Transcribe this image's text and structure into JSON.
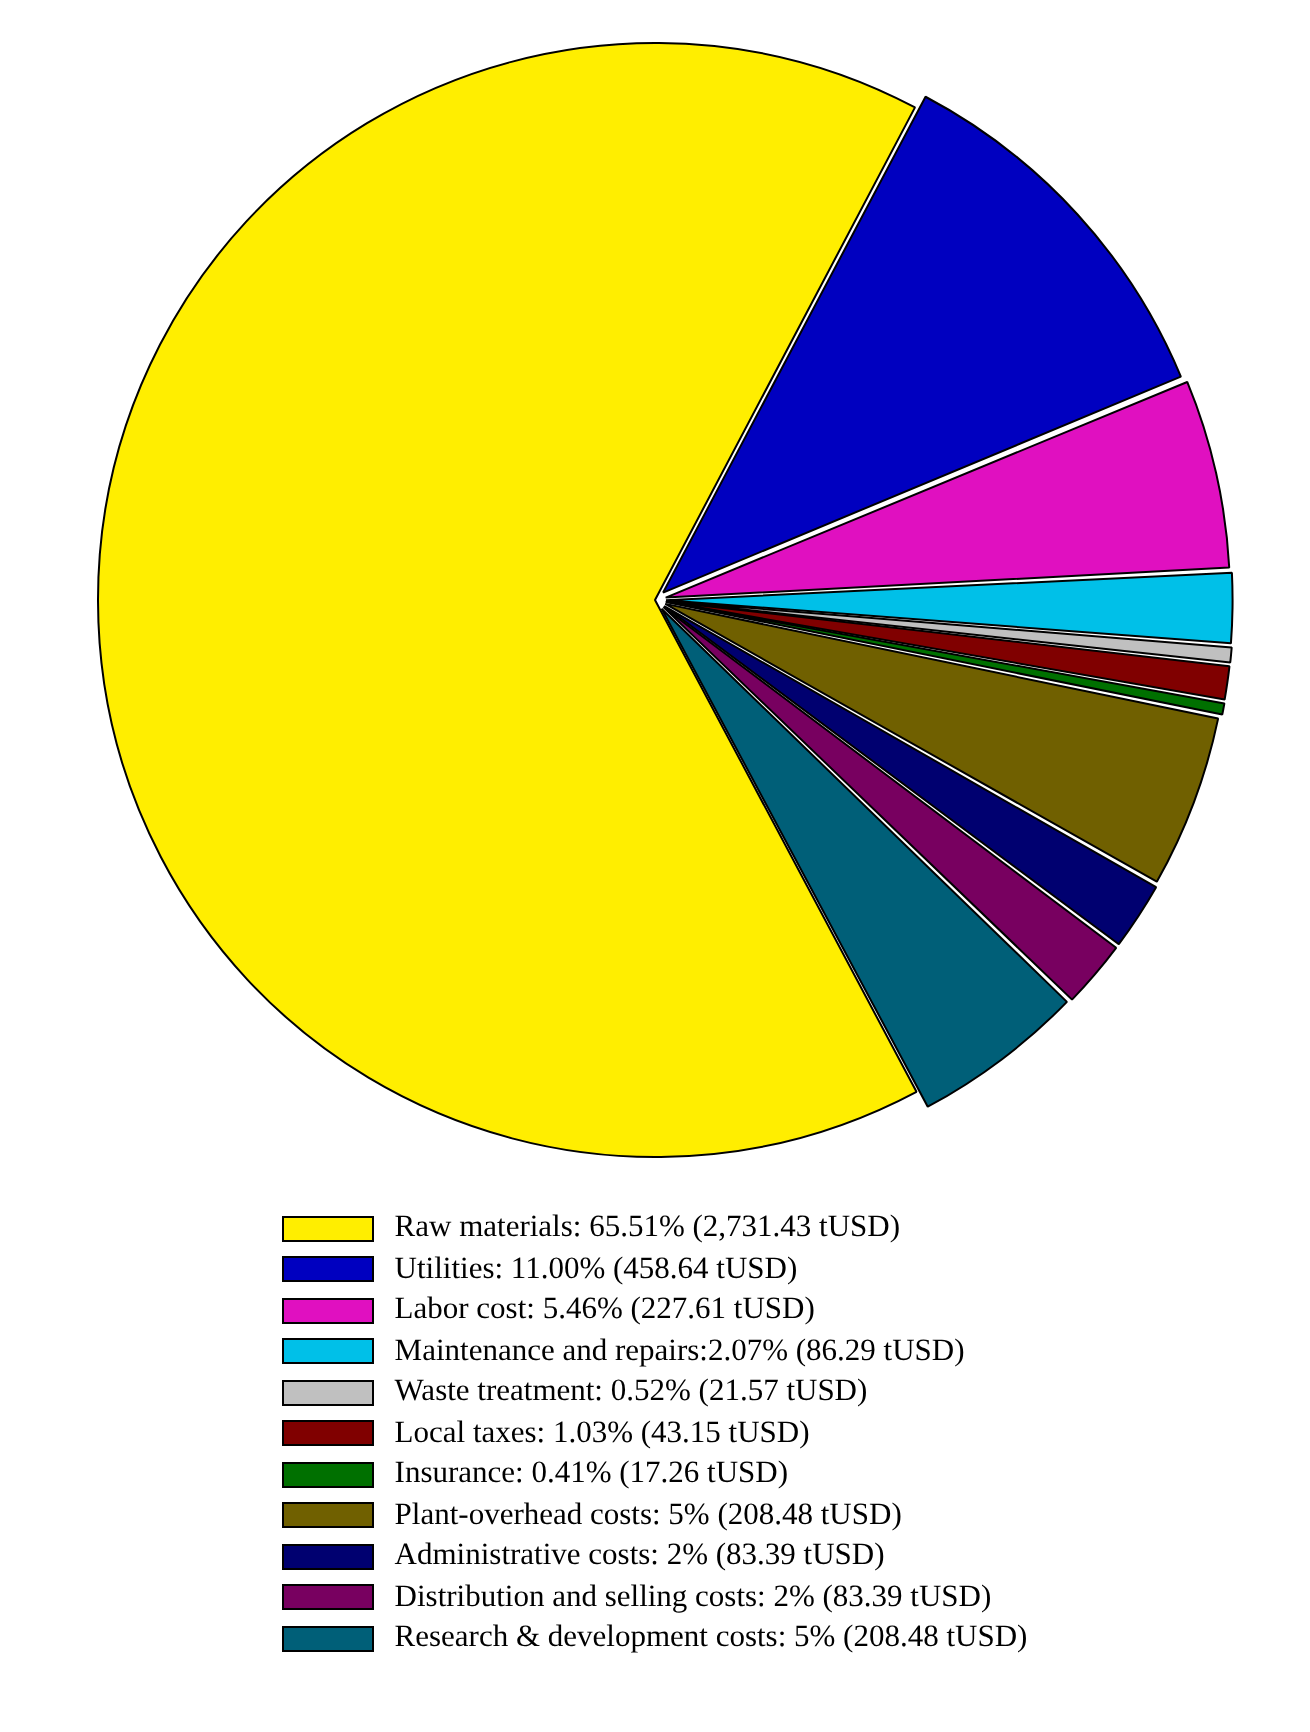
{
  "chart_data": {
    "type": "pie",
    "categories": [
      "Raw materials: 65.51% (2,731.43 tUSD)",
      "Utilities: 11.00% (458.64 tUSD)",
      "Labor cost: 5.46% (227.61 tUSD)",
      "Maintenance and repairs:2.07% (86.29 tUSD)",
      "Waste treatment: 0.52% (21.57 tUSD)",
      "Local taxes: 1.03% (43.15 tUSD)",
      "Insurance: 0.41% (17.26 tUSD)",
      "Plant-overhead costs: 5% (208.48 tUSD)",
      "Administrative costs: 2% (83.39 tUSD)",
      "Distribution and selling costs: 2% (83.39 tUSD)",
      "Research & development costs: 5% (208.48 tUSD)"
    ],
    "values": [
      2731.43,
      458.64,
      227.61,
      86.29,
      21.57,
      43.15,
      17.26,
      208.48,
      83.39,
      83.39,
      208.48
    ],
    "colors": [
      "#ffee00",
      "#0000c0",
      "#e010c0",
      "#00c0e8",
      "#c0c0c0",
      "#800000",
      "#007000",
      "#706000",
      "#000070",
      "#780060",
      "#005f78"
    ],
    "legend": "bottom"
  }
}
